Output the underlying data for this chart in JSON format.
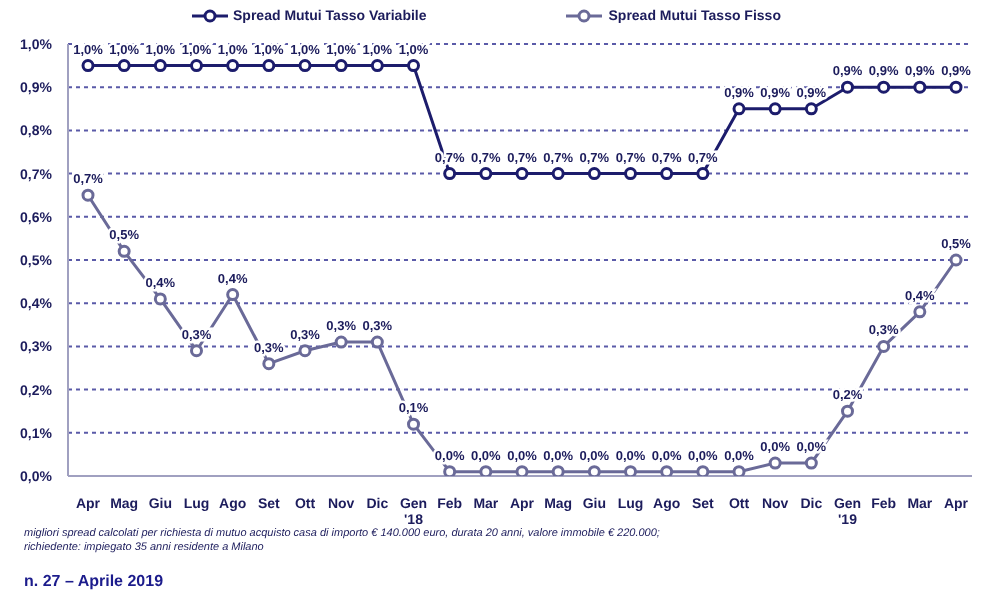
{
  "chart_data": {
    "type": "line",
    "categories": [
      "Apr",
      "Mag",
      "Giu",
      "Lug",
      "Ago",
      "Set",
      "Ott",
      "Nov",
      "Dic",
      "Gen '18",
      "Feb",
      "Mar",
      "Apr",
      "Mag",
      "Giu",
      "Lug",
      "Ago",
      "Set",
      "Ott",
      "Nov",
      "Dic",
      "Gen '19",
      "Feb",
      "Mar",
      "Apr"
    ],
    "series": [
      {
        "name": "Spread Mutui Tasso Variabile",
        "color": "#1c1c6c",
        "values": [
          0.95,
          0.95,
          0.95,
          0.95,
          0.95,
          0.95,
          0.95,
          0.95,
          0.95,
          0.95,
          0.7,
          0.7,
          0.7,
          0.7,
          0.7,
          0.7,
          0.7,
          0.7,
          0.85,
          0.85,
          0.85,
          0.9,
          0.9,
          0.9,
          0.9
        ],
        "value_labels": [
          "1,0%",
          "1,0%",
          "1,0%",
          "1,0%",
          "1,0%",
          "1,0%",
          "1,0%",
          "1,0%",
          "1,0%",
          "1,0%",
          "0,7%",
          "0,7%",
          "0,7%",
          "0,7%",
          "0,7%",
          "0,7%",
          "0,7%",
          "0,7%",
          "0,9%",
          "0,9%",
          "0,9%",
          "0,9%",
          "0,9%",
          "0,9%",
          "0,9%"
        ]
      },
      {
        "name": "Spread Mutui Tasso Fisso",
        "color": "#6a6a98",
        "values": [
          0.65,
          0.52,
          0.41,
          0.29,
          0.42,
          0.26,
          0.29,
          0.31,
          0.31,
          0.12,
          0.01,
          0.01,
          0.01,
          0.01,
          0.01,
          0.01,
          0.01,
          0.01,
          0.01,
          0.03,
          0.03,
          0.15,
          0.3,
          0.38,
          0.5
        ],
        "value_labels": [
          "0,7%",
          "0,5%",
          "0,4%",
          "0,3%",
          "0,4%",
          "0,3%",
          "0,3%",
          "0,3%",
          "0,3%",
          "0,1%",
          "0,0%",
          "0,0%",
          "0,0%",
          "0,0%",
          "0,0%",
          "0,0%",
          "0,0%",
          "0,0%",
          "0,0%",
          "0,0%",
          "0,0%",
          "0,2%",
          "0,3%",
          "0,4%",
          "0,5%"
        ]
      }
    ],
    "ylim": [
      0,
      1
    ],
    "yticks": [
      {
        "value": 0,
        "label": "0,0%"
      },
      {
        "value": 0.1,
        "label": "0,1%"
      },
      {
        "value": 0.2,
        "label": "0,2%"
      },
      {
        "value": 0.3,
        "label": "0,3%"
      },
      {
        "value": 0.4,
        "label": "0,4%"
      },
      {
        "value": 0.5,
        "label": "0,5%"
      },
      {
        "value": 0.6,
        "label": "0,6%"
      },
      {
        "value": 0.7,
        "label": "0,7%"
      },
      {
        "value": 0.8,
        "label": "0,8%"
      },
      {
        "value": 0.9,
        "label": "0,9%"
      },
      {
        "value": 1,
        "label": "1,0%"
      }
    ],
    "grid": "y",
    "legend": "top",
    "marker": "circle",
    "line_style": "solid",
    "annotations": [
      "migliori spread calcolati per richiesta di mutuo acquisto casa di importo € 140.000 euro, durata 20 anni, valore immobile € 220.000; richiedente: impiegato 35 anni residente a Milano",
      "n. 27 – Aprile 2019"
    ]
  }
}
